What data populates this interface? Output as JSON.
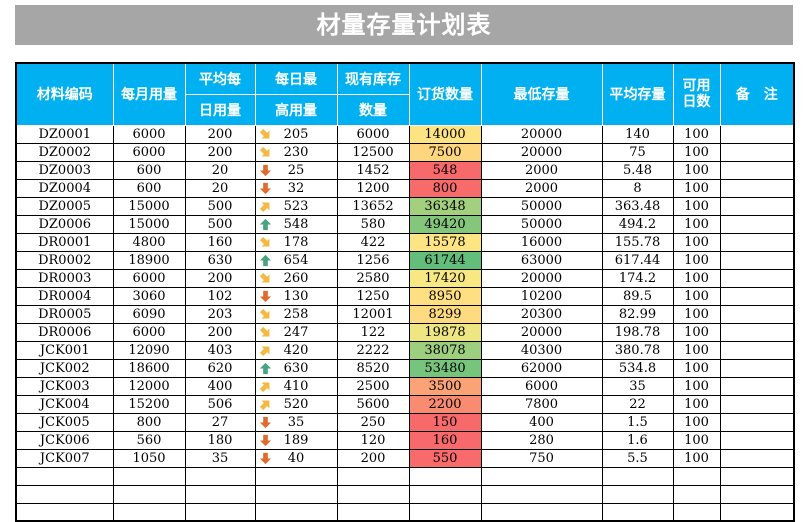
{
  "title": "材量存量计划表",
  "headers": {
    "code": "材料编码",
    "monthly": "每月用量",
    "daily_top": "平均每",
    "daily_bottom": "日用量",
    "max_top": "每日最",
    "max_bottom": "高用量",
    "stock_top": "现有库存",
    "stock_bottom": "数量",
    "order": "订货数量",
    "min": "最低存量",
    "avg": "平均存量",
    "days_top": "可用",
    "days_bottom": "日数",
    "note": "备　注"
  },
  "colors": {
    "header_bg": "#00b0f0",
    "title_bg": "#a6a6a6",
    "arrow_up": "#48a37e",
    "arrow_diag_up": "#f4b943",
    "arrow_diag_down": "#f4b943",
    "arrow_down": "#e06b2f"
  },
  "rows": [
    {
      "code": "DZ0001",
      "monthly": "6000",
      "daily": "200",
      "trend": "diag-down",
      "max": "205",
      "stock": "6000",
      "order": "14000",
      "order_color": "#fee382",
      "min": "20000",
      "avg": "140",
      "days": "100",
      "note": ""
    },
    {
      "code": "DZ0002",
      "monthly": "6000",
      "daily": "200",
      "trend": "diag-down",
      "max": "230",
      "stock": "12500",
      "order": "7500",
      "order_color": "#fed680",
      "min": "20000",
      "avg": "75",
      "days": "100",
      "note": ""
    },
    {
      "code": "DZ0003",
      "monthly": "600",
      "daily": "20",
      "trend": "down",
      "max": "25",
      "stock": "1452",
      "order": "548",
      "order_color": "#f8696b",
      "min": "2000",
      "avg": "5.48",
      "days": "100",
      "note": ""
    },
    {
      "code": "DZ0004",
      "monthly": "600",
      "daily": "20",
      "trend": "down",
      "max": "32",
      "stock": "1200",
      "order": "800",
      "order_color": "#f86b6b",
      "min": "2000",
      "avg": "8",
      "days": "100",
      "note": ""
    },
    {
      "code": "DZ0005",
      "monthly": "15000",
      "daily": "500",
      "trend": "diag-up",
      "max": "523",
      "stock": "13652",
      "order": "36348",
      "order_color": "#a3d07f",
      "min": "50000",
      "avg": "363.48",
      "days": "100",
      "note": ""
    },
    {
      "code": "DZ0006",
      "monthly": "15000",
      "daily": "500",
      "trend": "up",
      "max": "548",
      "stock": "580",
      "order": "49420",
      "order_color": "#84c77c",
      "min": "50000",
      "avg": "494.2",
      "days": "100",
      "note": ""
    },
    {
      "code": "DR0001",
      "monthly": "4800",
      "daily": "160",
      "trend": "diag-down",
      "max": "178",
      "stock": "422",
      "order": "15578",
      "order_color": "#fde583",
      "min": "16000",
      "avg": "155.78",
      "days": "100",
      "note": ""
    },
    {
      "code": "DR0002",
      "monthly": "18900",
      "daily": "630",
      "trend": "up",
      "max": "654",
      "stock": "1256",
      "order": "61744",
      "order_color": "#63be7b",
      "min": "63000",
      "avg": "617.44",
      "days": "100",
      "note": ""
    },
    {
      "code": "DR0003",
      "monthly": "6000",
      "daily": "200",
      "trend": "diag-down",
      "max": "260",
      "stock": "2580",
      "order": "17420",
      "order_color": "#f7e884",
      "min": "20000",
      "avg": "174.2",
      "days": "100",
      "note": ""
    },
    {
      "code": "DR0004",
      "monthly": "3060",
      "daily": "102",
      "trend": "down",
      "max": "130",
      "stock": "1250",
      "order": "8950",
      "order_color": "#fedf82",
      "min": "10200",
      "avg": "89.5",
      "days": "100",
      "note": ""
    },
    {
      "code": "DR0005",
      "monthly": "6090",
      "daily": "203",
      "trend": "diag-down",
      "max": "258",
      "stock": "12001",
      "order": "8299",
      "order_color": "#fedb81",
      "min": "20300",
      "avg": "82.99",
      "days": "100",
      "note": ""
    },
    {
      "code": "DR0006",
      "monthly": "6000",
      "daily": "200",
      "trend": "diag-down",
      "max": "247",
      "stock": "122",
      "order": "19878",
      "order_color": "#eee683",
      "min": "20000",
      "avg": "198.78",
      "days": "100",
      "note": ""
    },
    {
      "code": "JCK001",
      "monthly": "12090",
      "daily": "403",
      "trend": "diag-up",
      "max": "420",
      "stock": "2222",
      "order": "38078",
      "order_color": "#9dcf7f",
      "min": "40300",
      "avg": "380.78",
      "days": "100",
      "note": ""
    },
    {
      "code": "JCK002",
      "monthly": "18600",
      "daily": "620",
      "trend": "up",
      "max": "630",
      "stock": "8520",
      "order": "53480",
      "order_color": "#77c47c",
      "min": "62000",
      "avg": "534.8",
      "days": "100",
      "note": ""
    },
    {
      "code": "JCK003",
      "monthly": "12000",
      "daily": "400",
      "trend": "diag-up",
      "max": "410",
      "stock": "2500",
      "order": "3500",
      "order_color": "#fba276",
      "min": "6000",
      "avg": "35",
      "days": "100",
      "note": ""
    },
    {
      "code": "JCK004",
      "monthly": "15200",
      "daily": "506",
      "trend": "diag-up",
      "max": "520",
      "stock": "5600",
      "order": "2200",
      "order_color": "#f98b71",
      "min": "7800",
      "avg": "22",
      "days": "100",
      "note": ""
    },
    {
      "code": "JCK005",
      "monthly": "800",
      "daily": "27",
      "trend": "down",
      "max": "35",
      "stock": "250",
      "order": "150",
      "order_color": "#f8696b",
      "min": "400",
      "avg": "1.5",
      "days": "100",
      "note": ""
    },
    {
      "code": "JCK006",
      "monthly": "560",
      "daily": "180",
      "trend": "down",
      "max": "189",
      "stock": "120",
      "order": "160",
      "order_color": "#f8696b",
      "min": "280",
      "avg": "1.6",
      "days": "100",
      "note": ""
    },
    {
      "code": "JCK007",
      "monthly": "1050",
      "daily": "35",
      "trend": "down",
      "max": "40",
      "stock": "200",
      "order": "550",
      "order_color": "#f86a6b",
      "min": "750",
      "avg": "5.5",
      "days": "100",
      "note": ""
    },
    {
      "code": "",
      "monthly": "",
      "daily": "",
      "trend": "",
      "max": "",
      "stock": "",
      "order": "",
      "order_color": "",
      "min": "",
      "avg": "",
      "days": "",
      "note": ""
    },
    {
      "code": "",
      "monthly": "",
      "daily": "",
      "trend": "",
      "max": "",
      "stock": "",
      "order": "",
      "order_color": "",
      "min": "",
      "avg": "",
      "days": "",
      "note": ""
    },
    {
      "code": "",
      "monthly": "",
      "daily": "",
      "trend": "",
      "max": "",
      "stock": "",
      "order": "",
      "order_color": "",
      "min": "",
      "avg": "",
      "days": "",
      "note": ""
    }
  ]
}
